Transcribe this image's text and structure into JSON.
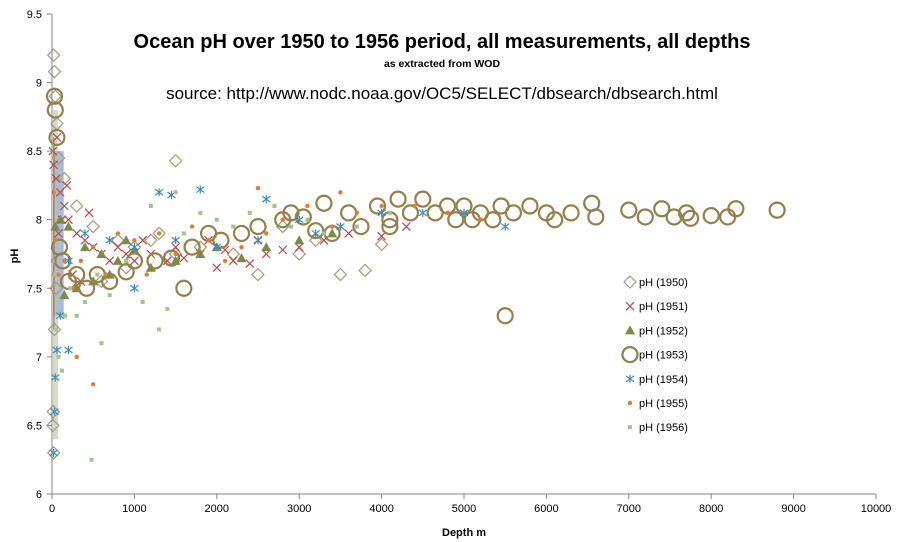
{
  "chart_data": {
    "type": "scatter",
    "title": "Ocean pH over 1950 to 1956 period, all measurements, all depths",
    "subtitle": "as extracted from WOD",
    "source": "source: http://www.nodc.noaa.gov/OC5/SELECT/dbsearch/dbsearch.html",
    "xlabel": "Depth m",
    "ylabel": "pH",
    "xlim": [
      0,
      10000
    ],
    "ylim": [
      6,
      9.5
    ],
    "xticks": [
      0,
      1000,
      2000,
      3000,
      4000,
      5000,
      6000,
      7000,
      8000,
      9000,
      10000
    ],
    "yticks": [
      6,
      6.5,
      7,
      7.5,
      8,
      8.5,
      9,
      9.5
    ],
    "grid": false,
    "legend_position": "right",
    "series": [
      {
        "name": "pH (1950)",
        "marker": "diamond-open",
        "color": "#a89a78",
        "points": [
          [
            20,
            9.2
          ],
          [
            30,
            9.08
          ],
          [
            40,
            8.9
          ],
          [
            60,
            8.7
          ],
          [
            80,
            8.45
          ],
          [
            150,
            8.3
          ],
          [
            300,
            8.1
          ],
          [
            500,
            7.95
          ],
          [
            800,
            7.85
          ],
          [
            1000,
            7.8
          ],
          [
            1200,
            7.85
          ],
          [
            1500,
            8.43
          ],
          [
            1500,
            7.75
          ],
          [
            1800,
            7.8
          ],
          [
            2200,
            7.75
          ],
          [
            2500,
            7.6
          ],
          [
            3000,
            7.75
          ],
          [
            3500,
            7.6
          ],
          [
            3800,
            7.63
          ],
          [
            4000,
            7.82
          ],
          [
            10,
            6.5
          ],
          [
            15,
            6.6
          ],
          [
            20,
            6.3
          ],
          [
            30,
            7.2
          ],
          [
            50,
            7.5
          ],
          [
            600,
            7.55
          ],
          [
            900,
            7.65
          ],
          [
            1300,
            7.9
          ],
          [
            2800,
            7.95
          ],
          [
            3200,
            7.85
          ]
        ]
      },
      {
        "name": "pH (1951)",
        "marker": "x",
        "color": "#b84a4a",
        "points": [
          [
            10,
            8.5
          ],
          [
            20,
            8.4
          ],
          [
            50,
            8.3
          ],
          [
            100,
            8.2
          ],
          [
            150,
            8.1
          ],
          [
            200,
            8.0
          ],
          [
            300,
            7.9
          ],
          [
            400,
            7.85
          ],
          [
            500,
            7.8
          ],
          [
            600,
            7.75
          ],
          [
            700,
            7.7
          ],
          [
            800,
            7.8
          ],
          [
            900,
            7.75
          ],
          [
            1000,
            7.7
          ],
          [
            1200,
            7.75
          ],
          [
            1400,
            7.7
          ],
          [
            1600,
            7.72
          ],
          [
            1800,
            7.75
          ],
          [
            2000,
            7.65
          ],
          [
            2200,
            7.7
          ],
          [
            2400,
            7.68
          ],
          [
            2600,
            7.75
          ],
          [
            2800,
            7.78
          ],
          [
            3000,
            7.8
          ],
          [
            3300,
            7.85
          ],
          [
            3600,
            7.9
          ],
          [
            4000,
            7.88
          ],
          [
            4300,
            7.95
          ],
          [
            250,
            7.6
          ],
          [
            350,
            7.55
          ],
          [
            450,
            8.05
          ],
          [
            80,
            7.9
          ],
          [
            120,
            8.0
          ],
          [
            1100,
            7.85
          ],
          [
            1500,
            7.8
          ],
          [
            1900,
            7.85
          ],
          [
            2100,
            7.78
          ],
          [
            2500,
            7.85
          ],
          [
            180,
            8.25
          ],
          [
            60,
            8.6
          ]
        ]
      },
      {
        "name": "pH (1952)",
        "marker": "triangle",
        "color": "#7a8b4a",
        "points": [
          [
            40,
            7.95
          ],
          [
            100,
            8.0
          ],
          [
            200,
            7.95
          ],
          [
            400,
            7.8
          ],
          [
            600,
            7.75
          ],
          [
            800,
            7.7
          ],
          [
            1000,
            7.78
          ],
          [
            1200,
            7.65
          ],
          [
            1500,
            7.7
          ],
          [
            1800,
            7.75
          ],
          [
            2000,
            7.8
          ],
          [
            2300,
            7.72
          ],
          [
            2600,
            7.8
          ],
          [
            3000,
            7.85
          ],
          [
            3400,
            7.9
          ],
          [
            300,
            7.5
          ],
          [
            500,
            7.55
          ],
          [
            700,
            7.6
          ],
          [
            150,
            7.45
          ],
          [
            900,
            7.85
          ]
        ]
      },
      {
        "name": "pH (1953)",
        "marker": "circle-open",
        "color": "#94804a",
        "points": [
          [
            30,
            8.9
          ],
          [
            40,
            8.8
          ],
          [
            60,
            8.6
          ],
          [
            90,
            7.8
          ],
          [
            130,
            7.7
          ],
          [
            200,
            7.55
          ],
          [
            300,
            7.6
          ],
          [
            420,
            7.5
          ],
          [
            550,
            7.6
          ],
          [
            700,
            7.55
          ],
          [
            900,
            7.62
          ],
          [
            1000,
            7.7
          ],
          [
            1250,
            7.7
          ],
          [
            1450,
            7.72
          ],
          [
            1600,
            7.5
          ],
          [
            1700,
            7.8
          ],
          [
            1900,
            7.9
          ],
          [
            2050,
            7.85
          ],
          [
            2300,
            7.9
          ],
          [
            2500,
            7.95
          ],
          [
            2800,
            8.0
          ],
          [
            2900,
            8.05
          ],
          [
            3050,
            8.02
          ],
          [
            3200,
            7.92
          ],
          [
            3400,
            7.9
          ],
          [
            3600,
            8.05
          ],
          [
            3750,
            7.95
          ],
          [
            3950,
            8.1
          ],
          [
            4100,
            8.0
          ],
          [
            4200,
            8.15
          ],
          [
            4350,
            8.05
          ],
          [
            4500,
            8.15
          ],
          [
            4650,
            8.05
          ],
          [
            4800,
            8.1
          ],
          [
            4900,
            8.0
          ],
          [
            5000,
            8.1
          ],
          [
            5100,
            8.0
          ],
          [
            5200,
            8.05
          ],
          [
            5350,
            8.0
          ],
          [
            5450,
            8.1
          ],
          [
            5500,
            7.3
          ],
          [
            5600,
            8.05
          ],
          [
            5800,
            8.1
          ],
          [
            6000,
            8.05
          ],
          [
            6100,
            8.0
          ],
          [
            6300,
            8.05
          ],
          [
            6550,
            8.12
          ],
          [
            6600,
            8.02
          ],
          [
            7000,
            8.07
          ],
          [
            7200,
            8.02
          ],
          [
            7400,
            8.08
          ],
          [
            7550,
            8.02
          ],
          [
            7700,
            8.05
          ],
          [
            7750,
            8.01
          ],
          [
            8000,
            8.03
          ],
          [
            8200,
            8.02
          ],
          [
            8300,
            8.08
          ],
          [
            8800,
            8.07
          ],
          [
            3300,
            8.12
          ],
          [
            4100,
            7.95
          ]
        ]
      },
      {
        "name": "pH (1954)",
        "marker": "asterisk",
        "color": "#3a8fb5",
        "points": [
          [
            20,
            6.3
          ],
          [
            30,
            6.6
          ],
          [
            40,
            6.85
          ],
          [
            60,
            7.05
          ],
          [
            100,
            7.3
          ],
          [
            200,
            7.7
          ],
          [
            400,
            7.9
          ],
          [
            700,
            7.85
          ],
          [
            1000,
            7.8
          ],
          [
            1500,
            7.85
          ],
          [
            2000,
            7.8
          ],
          [
            2500,
            7.85
          ],
          [
            3000,
            8.0
          ],
          [
            3500,
            7.95
          ],
          [
            4000,
            8.05
          ],
          [
            4500,
            8.05
          ],
          [
            5000,
            8.05
          ],
          [
            5500,
            7.95
          ],
          [
            1300,
            8.2
          ],
          [
            1450,
            8.18
          ],
          [
            1800,
            8.22
          ],
          [
            2600,
            8.15
          ],
          [
            200,
            7.05
          ],
          [
            1000,
            7.5
          ],
          [
            3200,
            7.9
          ]
        ]
      },
      {
        "name": "pH (1955)",
        "marker": "dot",
        "color": "#e07b39",
        "points": [
          [
            20,
            8.2
          ],
          [
            40,
            7.85
          ],
          [
            80,
            7.6
          ],
          [
            150,
            7.7
          ],
          [
            250,
            7.5
          ],
          [
            350,
            7.7
          ],
          [
            500,
            7.8
          ],
          [
            650,
            7.6
          ],
          [
            800,
            7.9
          ],
          [
            1000,
            7.85
          ],
          [
            1150,
            7.6
          ],
          [
            1300,
            7.9
          ],
          [
            1500,
            7.75
          ],
          [
            1700,
            7.95
          ],
          [
            1900,
            7.85
          ],
          [
            2100,
            7.7
          ],
          [
            2300,
            7.8
          ],
          [
            2600,
            7.9
          ],
          [
            2800,
            8.0
          ],
          [
            3100,
            8.1
          ],
          [
            3400,
            7.95
          ],
          [
            3700,
            8.05
          ],
          [
            4000,
            8.1
          ],
          [
            4400,
            8.1
          ],
          [
            4800,
            8.05
          ],
          [
            5200,
            8.0
          ],
          [
            500,
            6.8
          ],
          [
            300,
            7.0
          ],
          [
            2500,
            8.23
          ],
          [
            3500,
            8.2
          ]
        ]
      },
      {
        "name": "pH (1956)",
        "marker": "square-small",
        "color": "#a3c48a",
        "points": [
          [
            10,
            7.7
          ],
          [
            20,
            7.6
          ],
          [
            50,
            7.2
          ],
          [
            80,
            7.0
          ],
          [
            120,
            6.9
          ],
          [
            160,
            7.3
          ],
          [
            220,
            7.5
          ],
          [
            300,
            7.3
          ],
          [
            400,
            7.4
          ],
          [
            480,
            6.25
          ],
          [
            550,
            7.6
          ],
          [
            700,
            7.45
          ],
          [
            900,
            7.7
          ],
          [
            1100,
            7.4
          ],
          [
            1300,
            7.2
          ],
          [
            1400,
            7.35
          ],
          [
            1500,
            8.2
          ],
          [
            1600,
            7.9
          ],
          [
            1800,
            8.05
          ],
          [
            2000,
            8.0
          ],
          [
            2200,
            7.95
          ],
          [
            2400,
            8.05
          ],
          [
            2700,
            8.1
          ],
          [
            2900,
            7.95
          ],
          [
            3100,
            8.0
          ],
          [
            3300,
            7.9
          ],
          [
            3700,
            7.95
          ],
          [
            4100,
            8.05
          ],
          [
            1200,
            8.1
          ],
          [
            600,
            7.1
          ]
        ]
      }
    ]
  }
}
